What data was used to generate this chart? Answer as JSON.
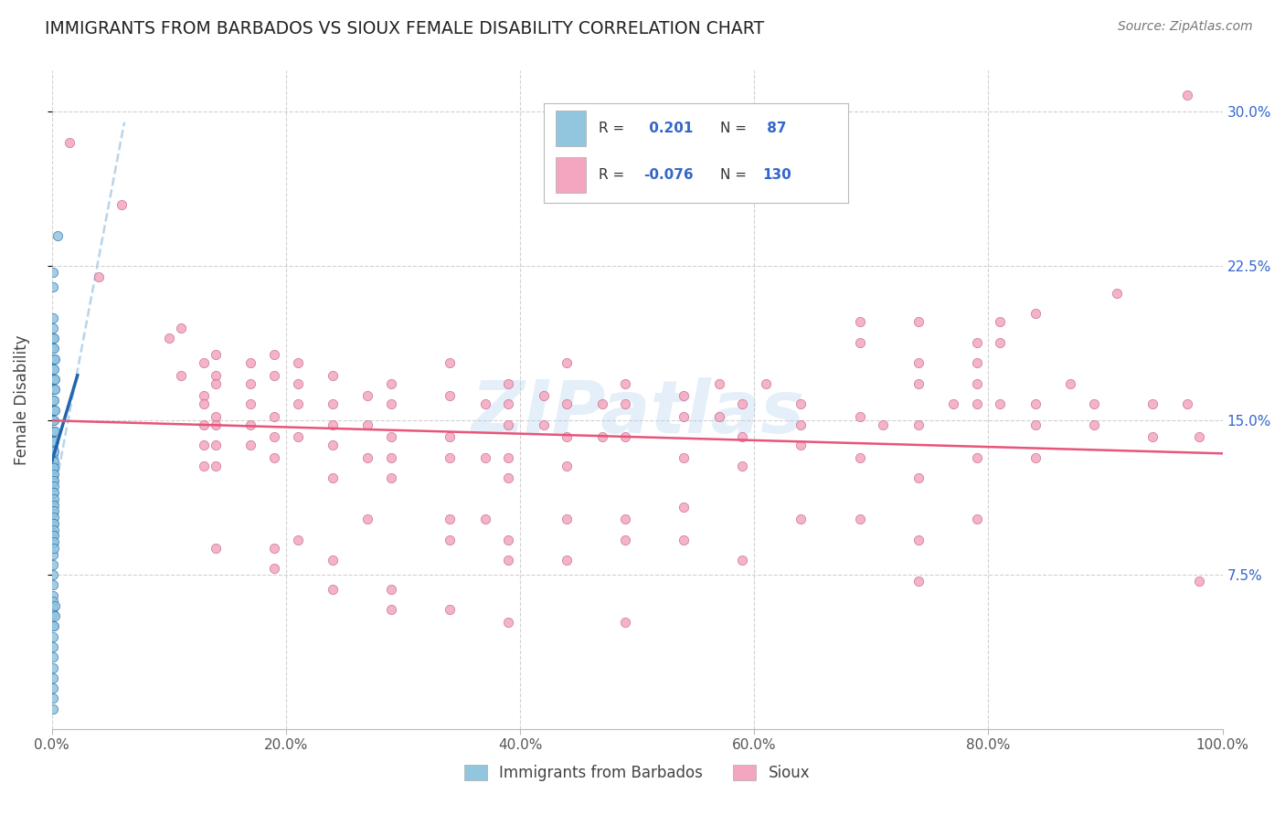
{
  "title": "IMMIGRANTS FROM BARBADOS VS SIOUX FEMALE DISABILITY CORRELATION CHART",
  "source": "Source: ZipAtlas.com",
  "ylabel": "Female Disability",
  "xlim": [
    0.0,
    1.0
  ],
  "ylim": [
    0.0,
    0.32
  ],
  "xtick_labels": [
    "0.0%",
    "20.0%",
    "40.0%",
    "60.0%",
    "80.0%",
    "100.0%"
  ],
  "xtick_values": [
    0.0,
    0.2,
    0.4,
    0.6,
    0.8,
    1.0
  ],
  "ytick_labels": [
    "7.5%",
    "15.0%",
    "22.5%",
    "30.0%"
  ],
  "ytick_values": [
    0.075,
    0.15,
    0.225,
    0.3
  ],
  "color_blue": "#92c5de",
  "color_pink": "#f4a6c0",
  "color_blue_line": "#2166ac",
  "color_pink_line": "#e8547a",
  "color_dashed": "#b8d4ea",
  "watermark": "ZIPatlas",
  "blue_points": [
    [
      0.001,
      0.222
    ],
    [
      0.001,
      0.215
    ],
    [
      0.001,
      0.2
    ],
    [
      0.001,
      0.195
    ],
    [
      0.001,
      0.19
    ],
    [
      0.001,
      0.185
    ],
    [
      0.001,
      0.18
    ],
    [
      0.001,
      0.175
    ],
    [
      0.001,
      0.17
    ],
    [
      0.001,
      0.165
    ],
    [
      0.001,
      0.16
    ],
    [
      0.001,
      0.155
    ],
    [
      0.001,
      0.15
    ],
    [
      0.001,
      0.145
    ],
    [
      0.001,
      0.14
    ],
    [
      0.001,
      0.138
    ],
    [
      0.001,
      0.136
    ],
    [
      0.001,
      0.133
    ],
    [
      0.001,
      0.13
    ],
    [
      0.001,
      0.128
    ],
    [
      0.001,
      0.125
    ],
    [
      0.001,
      0.122
    ],
    [
      0.001,
      0.12
    ],
    [
      0.001,
      0.115
    ],
    [
      0.001,
      0.11
    ],
    [
      0.001,
      0.105
    ],
    [
      0.001,
      0.1
    ],
    [
      0.001,
      0.095
    ],
    [
      0.001,
      0.09
    ],
    [
      0.001,
      0.085
    ],
    [
      0.001,
      0.08
    ],
    [
      0.001,
      0.075
    ],
    [
      0.001,
      0.07
    ],
    [
      0.001,
      0.065
    ],
    [
      0.001,
      0.062
    ],
    [
      0.001,
      0.059
    ],
    [
      0.001,
      0.056
    ],
    [
      0.001,
      0.05
    ],
    [
      0.001,
      0.045
    ],
    [
      0.001,
      0.04
    ],
    [
      0.001,
      0.035
    ],
    [
      0.001,
      0.03
    ],
    [
      0.001,
      0.025
    ],
    [
      0.001,
      0.02
    ],
    [
      0.001,
      0.015
    ],
    [
      0.001,
      0.01
    ],
    [
      0.002,
      0.19
    ],
    [
      0.002,
      0.185
    ],
    [
      0.002,
      0.18
    ],
    [
      0.002,
      0.175
    ],
    [
      0.002,
      0.17
    ],
    [
      0.002,
      0.165
    ],
    [
      0.002,
      0.16
    ],
    [
      0.002,
      0.155
    ],
    [
      0.002,
      0.15
    ],
    [
      0.002,
      0.145
    ],
    [
      0.002,
      0.14
    ],
    [
      0.002,
      0.135
    ],
    [
      0.002,
      0.13
    ],
    [
      0.002,
      0.127
    ],
    [
      0.002,
      0.124
    ],
    [
      0.002,
      0.121
    ],
    [
      0.002,
      0.118
    ],
    [
      0.002,
      0.115
    ],
    [
      0.002,
      0.112
    ],
    [
      0.002,
      0.109
    ],
    [
      0.002,
      0.106
    ],
    [
      0.002,
      0.103
    ],
    [
      0.002,
      0.1
    ],
    [
      0.002,
      0.097
    ],
    [
      0.002,
      0.094
    ],
    [
      0.002,
      0.091
    ],
    [
      0.002,
      0.088
    ],
    [
      0.002,
      0.05
    ],
    [
      0.003,
      0.18
    ],
    [
      0.003,
      0.17
    ],
    [
      0.003,
      0.165
    ],
    [
      0.003,
      0.155
    ],
    [
      0.003,
      0.145
    ],
    [
      0.003,
      0.06
    ],
    [
      0.003,
      0.055
    ],
    [
      0.005,
      0.24
    ]
  ],
  "pink_points": [
    [
      0.015,
      0.285
    ],
    [
      0.04,
      0.22
    ],
    [
      0.06,
      0.255
    ],
    [
      0.1,
      0.19
    ],
    [
      0.11,
      0.195
    ],
    [
      0.11,
      0.172
    ],
    [
      0.13,
      0.178
    ],
    [
      0.13,
      0.162
    ],
    [
      0.13,
      0.158
    ],
    [
      0.13,
      0.148
    ],
    [
      0.13,
      0.138
    ],
    [
      0.13,
      0.128
    ],
    [
      0.14,
      0.182
    ],
    [
      0.14,
      0.172
    ],
    [
      0.14,
      0.168
    ],
    [
      0.14,
      0.152
    ],
    [
      0.14,
      0.148
    ],
    [
      0.14,
      0.138
    ],
    [
      0.14,
      0.128
    ],
    [
      0.14,
      0.088
    ],
    [
      0.17,
      0.178
    ],
    [
      0.17,
      0.168
    ],
    [
      0.17,
      0.158
    ],
    [
      0.17,
      0.148
    ],
    [
      0.17,
      0.138
    ],
    [
      0.19,
      0.182
    ],
    [
      0.19,
      0.172
    ],
    [
      0.19,
      0.152
    ],
    [
      0.19,
      0.142
    ],
    [
      0.19,
      0.132
    ],
    [
      0.19,
      0.088
    ],
    [
      0.19,
      0.078
    ],
    [
      0.21,
      0.178
    ],
    [
      0.21,
      0.168
    ],
    [
      0.21,
      0.158
    ],
    [
      0.21,
      0.142
    ],
    [
      0.21,
      0.092
    ],
    [
      0.24,
      0.172
    ],
    [
      0.24,
      0.158
    ],
    [
      0.24,
      0.148
    ],
    [
      0.24,
      0.138
    ],
    [
      0.24,
      0.122
    ],
    [
      0.24,
      0.082
    ],
    [
      0.24,
      0.068
    ],
    [
      0.27,
      0.162
    ],
    [
      0.27,
      0.148
    ],
    [
      0.27,
      0.132
    ],
    [
      0.27,
      0.102
    ],
    [
      0.29,
      0.168
    ],
    [
      0.29,
      0.158
    ],
    [
      0.29,
      0.142
    ],
    [
      0.29,
      0.132
    ],
    [
      0.29,
      0.122
    ],
    [
      0.29,
      0.068
    ],
    [
      0.29,
      0.058
    ],
    [
      0.34,
      0.178
    ],
    [
      0.34,
      0.162
    ],
    [
      0.34,
      0.142
    ],
    [
      0.34,
      0.132
    ],
    [
      0.34,
      0.102
    ],
    [
      0.34,
      0.092
    ],
    [
      0.34,
      0.058
    ],
    [
      0.37,
      0.158
    ],
    [
      0.37,
      0.132
    ],
    [
      0.37,
      0.102
    ],
    [
      0.39,
      0.168
    ],
    [
      0.39,
      0.158
    ],
    [
      0.39,
      0.148
    ],
    [
      0.39,
      0.132
    ],
    [
      0.39,
      0.122
    ],
    [
      0.39,
      0.092
    ],
    [
      0.39,
      0.082
    ],
    [
      0.39,
      0.052
    ],
    [
      0.42,
      0.162
    ],
    [
      0.42,
      0.148
    ],
    [
      0.44,
      0.178
    ],
    [
      0.44,
      0.158
    ],
    [
      0.44,
      0.142
    ],
    [
      0.44,
      0.128
    ],
    [
      0.44,
      0.102
    ],
    [
      0.44,
      0.082
    ],
    [
      0.47,
      0.158
    ],
    [
      0.47,
      0.142
    ],
    [
      0.49,
      0.168
    ],
    [
      0.49,
      0.158
    ],
    [
      0.49,
      0.142
    ],
    [
      0.49,
      0.102
    ],
    [
      0.49,
      0.092
    ],
    [
      0.49,
      0.052
    ],
    [
      0.54,
      0.162
    ],
    [
      0.54,
      0.152
    ],
    [
      0.54,
      0.132
    ],
    [
      0.54,
      0.108
    ],
    [
      0.54,
      0.092
    ],
    [
      0.57,
      0.168
    ],
    [
      0.57,
      0.152
    ],
    [
      0.59,
      0.158
    ],
    [
      0.59,
      0.142
    ],
    [
      0.59,
      0.128
    ],
    [
      0.59,
      0.082
    ],
    [
      0.61,
      0.168
    ],
    [
      0.64,
      0.158
    ],
    [
      0.64,
      0.148
    ],
    [
      0.64,
      0.138
    ],
    [
      0.64,
      0.102
    ],
    [
      0.69,
      0.198
    ],
    [
      0.69,
      0.188
    ],
    [
      0.69,
      0.152
    ],
    [
      0.69,
      0.132
    ],
    [
      0.69,
      0.102
    ],
    [
      0.71,
      0.148
    ],
    [
      0.74,
      0.198
    ],
    [
      0.74,
      0.178
    ],
    [
      0.74,
      0.168
    ],
    [
      0.74,
      0.148
    ],
    [
      0.74,
      0.122
    ],
    [
      0.74,
      0.092
    ],
    [
      0.74,
      0.072
    ],
    [
      0.77,
      0.158
    ],
    [
      0.79,
      0.188
    ],
    [
      0.79,
      0.178
    ],
    [
      0.79,
      0.168
    ],
    [
      0.79,
      0.158
    ],
    [
      0.79,
      0.132
    ],
    [
      0.79,
      0.102
    ],
    [
      0.81,
      0.198
    ],
    [
      0.81,
      0.188
    ],
    [
      0.81,
      0.158
    ],
    [
      0.84,
      0.202
    ],
    [
      0.84,
      0.158
    ],
    [
      0.84,
      0.148
    ],
    [
      0.84,
      0.132
    ],
    [
      0.87,
      0.168
    ],
    [
      0.89,
      0.158
    ],
    [
      0.89,
      0.148
    ],
    [
      0.91,
      0.212
    ],
    [
      0.94,
      0.158
    ],
    [
      0.94,
      0.142
    ],
    [
      0.97,
      0.308
    ],
    [
      0.97,
      0.158
    ],
    [
      0.98,
      0.142
    ],
    [
      0.98,
      0.072
    ]
  ],
  "blue_line_solid": [
    [
      0.0,
      0.13
    ],
    [
      0.022,
      0.172
    ]
  ],
  "blue_line_dashed": [
    [
      0.0,
      0.108
    ],
    [
      0.062,
      0.295
    ]
  ],
  "pink_line": [
    [
      0.0,
      0.15
    ],
    [
      1.0,
      0.134
    ]
  ]
}
